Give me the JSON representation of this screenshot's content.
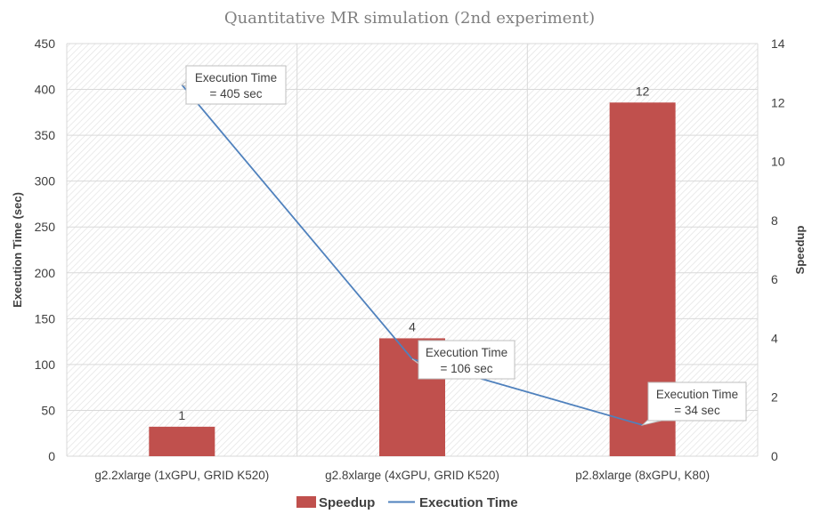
{
  "chart_data": {
    "type": "bar+line",
    "title": "Quantitative MR simulation (2nd experiment)",
    "categories": [
      "g2.2xlarge (1xGPU, GRID K520)",
      "g2.8xlarge (4xGPU, GRID K520)",
      "p2.8xlarge (8xGPU, K80)"
    ],
    "series": [
      {
        "name": "Speedup",
        "type": "bar",
        "axis": "right",
        "values": [
          1,
          4,
          12
        ],
        "color": "#c0504d",
        "data_labels": [
          "1",
          "4",
          "12"
        ]
      },
      {
        "name": "Execution Time",
        "type": "line",
        "axis": "left",
        "values": [
          405,
          106,
          34
        ],
        "color": "#4f81bd",
        "callouts": [
          {
            "line1": "Execution Time",
            "line2": "= 405 sec"
          },
          {
            "line1": "Execution Time",
            "line2": "= 106 sec"
          },
          {
            "line1": "Execution Time",
            "line2": "= 34 sec"
          }
        ]
      }
    ],
    "ylabel": "Execution Time (sec)",
    "y2label": "Speedup",
    "ylim": [
      0,
      450
    ],
    "y2lim": [
      0,
      14
    ],
    "yticks": [
      0,
      50,
      100,
      150,
      200,
      250,
      300,
      350,
      400,
      450
    ],
    "y2ticks": [
      0,
      2,
      4,
      6,
      8,
      10,
      12,
      14
    ],
    "grid": true,
    "legend_position": "bottom"
  }
}
